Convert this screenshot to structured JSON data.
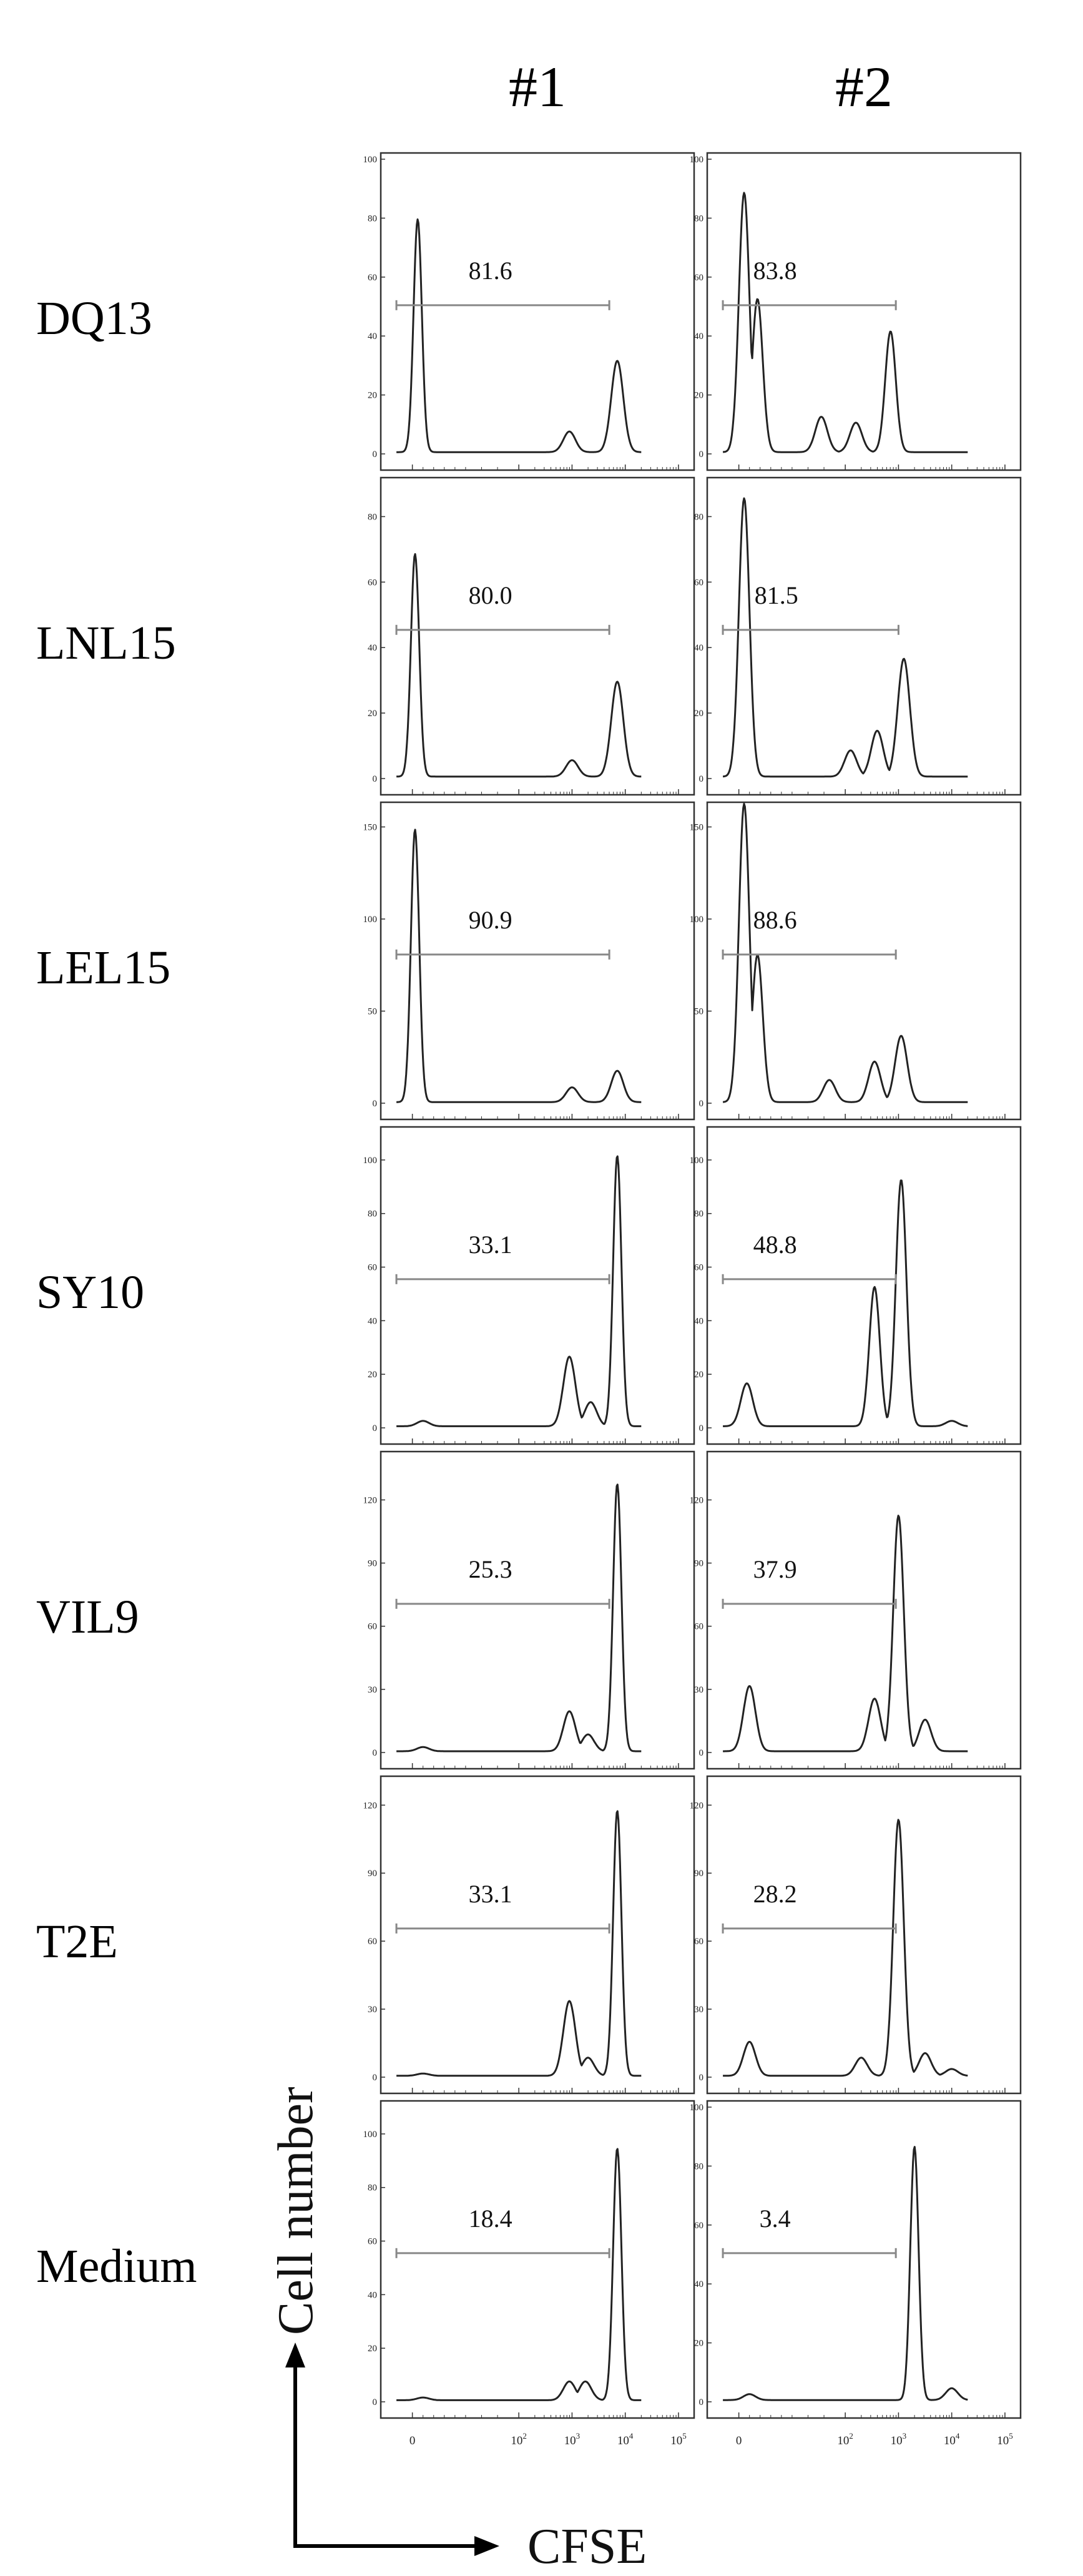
{
  "columns": [
    "#1",
    "#2"
  ],
  "rows": [
    "DQ13",
    "LNL15",
    "LEL15",
    "SY10",
    "VIL9",
    "T2E",
    "Medium"
  ],
  "axes": {
    "x_label": "CFSE",
    "y_label": "Cell number",
    "x_ticks": [
      {
        "base": "0",
        "exp": ""
      },
      {
        "base": "10",
        "exp": "2"
      },
      {
        "base": "10",
        "exp": "3"
      },
      {
        "base": "10",
        "exp": "4"
      },
      {
        "base": "10",
        "exp": "5"
      }
    ]
  },
  "chart_data": {
    "type": "histogram",
    "x_scale": "biexponential",
    "x_ticks": [
      "0",
      "10^2",
      "10^3",
      "10^4",
      "10^5"
    ],
    "xlabel": "CFSE",
    "ylabel": "Cell number",
    "panels": [
      {
        "row": "DQ13",
        "column": "#1",
        "ymax": 100,
        "yticks": [
          0,
          20,
          40,
          60,
          80,
          100
        ],
        "gate_percent": "81.6",
        "gate_range": [
          -0.3,
          3.7
        ],
        "peaks": [
          {
            "x": 0.1,
            "y": 79
          },
          {
            "x": 2.95,
            "y": 7
          },
          {
            "x": 3.85,
            "y": 31
          }
        ]
      },
      {
        "row": "DQ13",
        "column": "#2",
        "ymax": 100,
        "yticks": [
          0,
          20,
          40,
          60,
          80,
          100
        ],
        "gate_percent": "83.8",
        "gate_range": [
          -0.3,
          2.95
        ],
        "peaks": [
          {
            "x": 0.1,
            "y": 88
          },
          {
            "x": 0.35,
            "y": 52
          },
          {
            "x": 1.55,
            "y": 12
          },
          {
            "x": 2.2,
            "y": 10
          },
          {
            "x": 2.85,
            "y": 41
          }
        ]
      },
      {
        "row": "LNL15",
        "column": "#1",
        "ymax": 90,
        "yticks": [
          0,
          20,
          40,
          60,
          80
        ],
        "gate_percent": "80.0",
        "gate_range": [
          -0.3,
          3.7
        ],
        "peaks": [
          {
            "x": 0.05,
            "y": 68
          },
          {
            "x": 3.0,
            "y": 5
          },
          {
            "x": 3.85,
            "y": 29
          }
        ]
      },
      {
        "row": "LNL15",
        "column": "#2",
        "ymax": 90,
        "yticks": [
          0,
          20,
          40,
          60,
          80
        ],
        "gate_percent": "81.5",
        "gate_range": [
          -0.3,
          3.0
        ],
        "peaks": [
          {
            "x": 0.1,
            "y": 85
          },
          {
            "x": 2.1,
            "y": 8
          },
          {
            "x": 2.6,
            "y": 14
          },
          {
            "x": 3.1,
            "y": 36
          }
        ]
      },
      {
        "row": "LEL15",
        "column": "#1",
        "ymax": 160,
        "yticks": [
          0,
          50,
          100,
          150
        ],
        "gate_percent": "90.9",
        "gate_range": [
          -0.3,
          3.7
        ],
        "peaks": [
          {
            "x": 0.05,
            "y": 148
          },
          {
            "x": 3.0,
            "y": 8
          },
          {
            "x": 3.85,
            "y": 17
          }
        ]
      },
      {
        "row": "LEL15",
        "column": "#2",
        "ymax": 160,
        "yticks": [
          0,
          50,
          100,
          150
        ],
        "gate_percent": "88.6",
        "gate_range": [
          -0.3,
          2.95
        ],
        "peaks": [
          {
            "x": 0.1,
            "y": 162
          },
          {
            "x": 0.35,
            "y": 80
          },
          {
            "x": 1.7,
            "y": 12
          },
          {
            "x": 2.55,
            "y": 22
          },
          {
            "x": 3.05,
            "y": 36
          }
        ]
      },
      {
        "row": "SY10",
        "column": "#1",
        "ymax": 110,
        "yticks": [
          0,
          20,
          40,
          60,
          80,
          100
        ],
        "gate_percent": "33.1",
        "gate_range": [
          -0.3,
          3.7
        ],
        "peaks": [
          {
            "x": 0.2,
            "y": 2
          },
          {
            "x": 2.95,
            "y": 26
          },
          {
            "x": 3.35,
            "y": 9
          },
          {
            "x": 3.85,
            "y": 101
          }
        ]
      },
      {
        "row": "SY10",
        "column": "#2",
        "ymax": 110,
        "yticks": [
          0,
          20,
          40,
          60,
          80,
          100
        ],
        "gate_percent": "48.8",
        "gate_range": [
          -0.3,
          2.95
        ],
        "peaks": [
          {
            "x": 0.15,
            "y": 16
          },
          {
            "x": 2.55,
            "y": 52
          },
          {
            "x": 3.05,
            "y": 92
          },
          {
            "x": 4.0,
            "y": 2
          }
        ]
      },
      {
        "row": "VIL9",
        "column": "#1",
        "ymax": 140,
        "yticks": [
          0,
          30,
          60,
          90,
          120
        ],
        "gate_percent": "25.3",
        "gate_range": [
          -0.3,
          3.7
        ],
        "peaks": [
          {
            "x": 0.2,
            "y": 2
          },
          {
            "x": 2.95,
            "y": 19
          },
          {
            "x": 3.3,
            "y": 8
          },
          {
            "x": 3.85,
            "y": 127
          }
        ]
      },
      {
        "row": "VIL9",
        "column": "#2",
        "ymax": 140,
        "yticks": [
          0,
          30,
          60,
          90,
          120
        ],
        "gate_percent": "37.9",
        "gate_range": [
          -0.3,
          2.95
        ],
        "peaks": [
          {
            "x": 0.2,
            "y": 31
          },
          {
            "x": 2.55,
            "y": 25
          },
          {
            "x": 3.0,
            "y": 112
          },
          {
            "x": 3.5,
            "y": 15
          }
        ]
      },
      {
        "row": "T2E",
        "column": "#1",
        "ymax": 130,
        "yticks": [
          0,
          30,
          60,
          90,
          120
        ],
        "gate_percent": "33.1",
        "gate_range": [
          -0.3,
          3.7
        ],
        "peaks": [
          {
            "x": 0.2,
            "y": 1
          },
          {
            "x": 2.95,
            "y": 33
          },
          {
            "x": 3.3,
            "y": 8
          },
          {
            "x": 3.85,
            "y": 117
          }
        ]
      },
      {
        "row": "T2E",
        "column": "#2",
        "ymax": 130,
        "yticks": [
          0,
          30,
          60,
          90,
          120
        ],
        "gate_percent": "28.2",
        "gate_range": [
          -0.3,
          2.95
        ],
        "peaks": [
          {
            "x": 0.2,
            "y": 15
          },
          {
            "x": 2.3,
            "y": 8
          },
          {
            "x": 3.0,
            "y": 113
          },
          {
            "x": 3.5,
            "y": 10
          },
          {
            "x": 4.0,
            "y": 3
          }
        ]
      },
      {
        "row": "Medium",
        "column": "#1",
        "ymax": 110,
        "yticks": [
          0,
          20,
          40,
          60,
          80,
          100
        ],
        "gate_percent": "18.4",
        "gate_range": [
          -0.3,
          3.7
        ],
        "peaks": [
          {
            "x": 0.2,
            "y": 1
          },
          {
            "x": 2.95,
            "y": 7
          },
          {
            "x": 3.25,
            "y": 7
          },
          {
            "x": 3.85,
            "y": 94
          }
        ]
      },
      {
        "row": "Medium",
        "column": "#2",
        "ymax": 100,
        "yticks": [
          0,
          20,
          40,
          60,
          80,
          100
        ],
        "gate_percent": "3.4",
        "gate_range": [
          -0.3,
          2.95
        ],
        "peaks": [
          {
            "x": 0.2,
            "y": 2
          },
          {
            "x": 3.3,
            "y": 86
          },
          {
            "x": 4.0,
            "y": 4
          }
        ]
      }
    ]
  }
}
